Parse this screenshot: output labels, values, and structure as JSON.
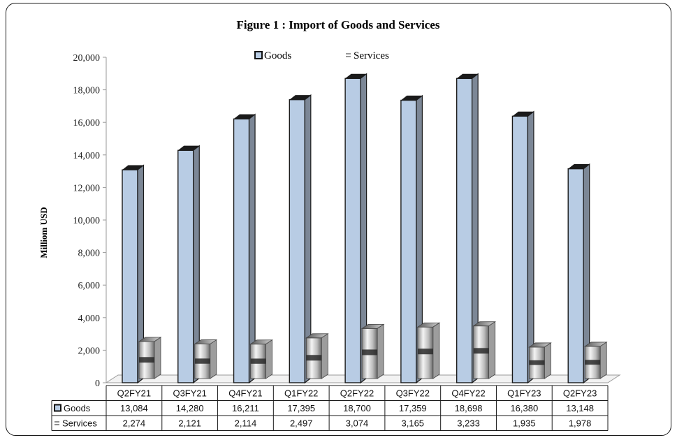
{
  "chart_data": {
    "type": "bar",
    "title": "Figure 1 : Import of Goods and Services",
    "ylabel": "Milliom USD",
    "xlabel": "",
    "ylim": [
      0,
      20000
    ],
    "yticks": [
      0,
      2000,
      4000,
      6000,
      8000,
      10000,
      12000,
      14000,
      16000,
      18000,
      20000
    ],
    "ytick_labels": [
      "0",
      "2,000",
      "4,000",
      "6,000",
      "8,000",
      "10,000",
      "12,000",
      "14,000",
      "16,000",
      "18,000",
      "20,000"
    ],
    "categories": [
      "Q2FY21",
      "Q3FY21",
      "Q4FY21",
      "Q1FY22",
      "Q2FY22",
      "Q3FY22",
      "Q4FY22",
      "Q1FY23",
      "Q2FY23"
    ],
    "series": [
      {
        "name": "Goods",
        "table_label": "Goods",
        "values": [
          13084,
          14280,
          16211,
          17395,
          18700,
          17359,
          18698,
          16380,
          13148
        ],
        "value_labels": [
          "13,084",
          "14,280",
          "16,211",
          "17,395",
          "18,700",
          "17,359",
          "18,698",
          "16,380",
          "13,148"
        ],
        "color": "#b8cce4"
      },
      {
        "name": "Services",
        "table_label": "Services",
        "values": [
          2274,
          2121,
          2114,
          2497,
          3074,
          3165,
          3233,
          1935,
          1978
        ],
        "value_labels": [
          "2,274",
          "2,121",
          "2,114",
          "2,497",
          "3,074",
          "3,165",
          "3,233",
          "1,935",
          "1,978"
        ],
        "color": "#7f7f7f"
      }
    ],
    "legend": {
      "position": "top-center",
      "items": [
        "Goods",
        "Services"
      ]
    },
    "data_table": true,
    "grid": false
  }
}
